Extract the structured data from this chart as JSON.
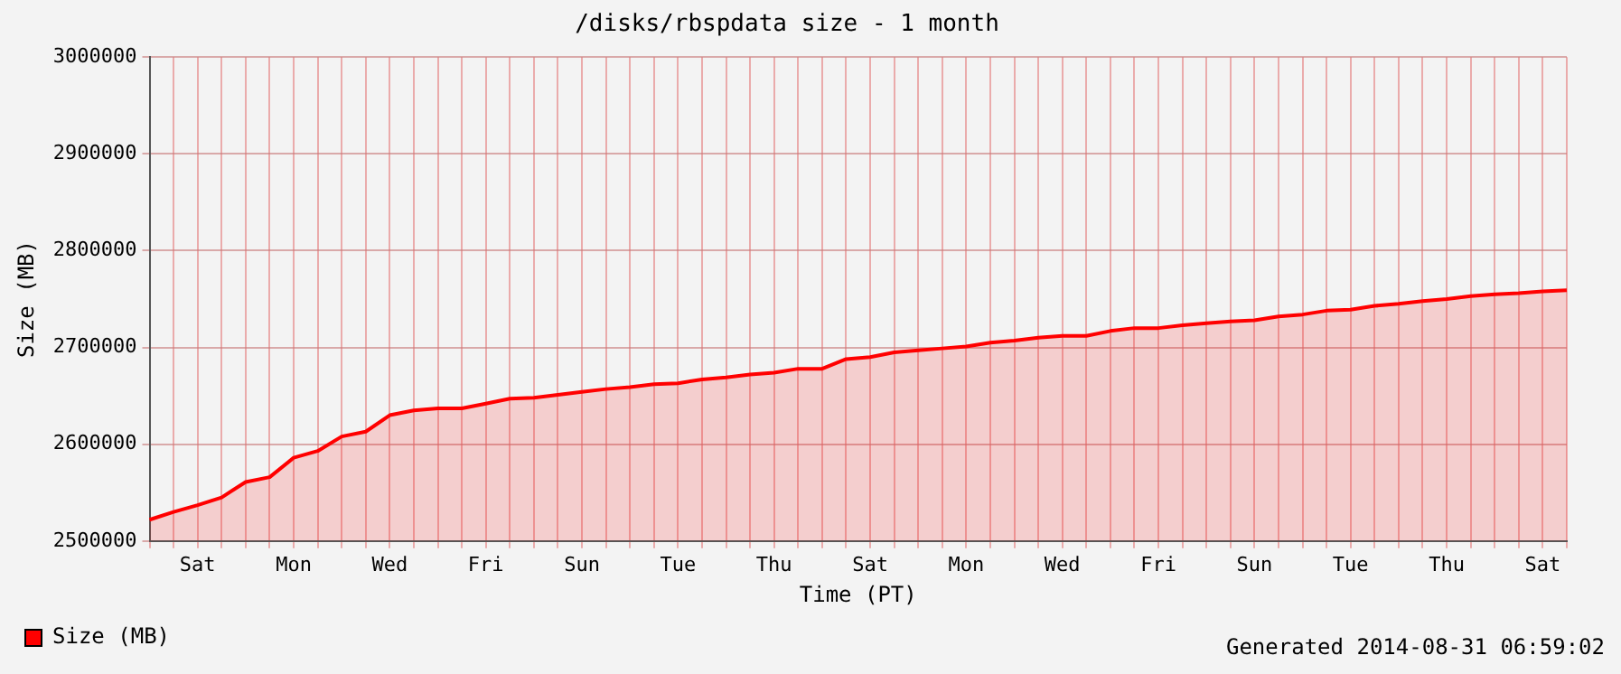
{
  "chart_data": {
    "type": "area",
    "title": "/disks/rbspdata size - 1 month",
    "xlabel": "Time (PT)",
    "ylabel": "Size (MB)",
    "annotations": [
      "Generated 2014-08-31 06:59:02"
    ],
    "categories": [
      null,
      null,
      "Sat",
      null,
      null,
      null,
      "Mon",
      null,
      null,
      null,
      "Wed",
      null,
      null,
      null,
      "Fri",
      null,
      null,
      null,
      "Sun",
      null,
      null,
      null,
      "Tue",
      null,
      null,
      null,
      "Thu",
      null,
      null,
      null,
      "Sat",
      null,
      null,
      null,
      "Mon",
      null,
      null,
      null,
      "Wed",
      null,
      null,
      null,
      "Fri",
      null,
      null,
      null,
      "Sun",
      null,
      null,
      null,
      "Tue",
      null,
      null,
      null,
      "Thu",
      null,
      null,
      null,
      "Sat",
      null
    ],
    "series": [
      {
        "name": "Size (MB)",
        "color": "#ff0000",
        "values": [
          2522000,
          2530000,
          2537000,
          2545000,
          2561000,
          2566000,
          2586000,
          2593000,
          2608000,
          2613000,
          2630000,
          2635000,
          2637000,
          2637000,
          2642000,
          2647000,
          2648000,
          2651000,
          2654000,
          2657000,
          2659000,
          2662000,
          2663000,
          2667000,
          2669000,
          2672000,
          2674000,
          2678000,
          2678000,
          2688000,
          2690000,
          2695000,
          2697000,
          2699000,
          2701000,
          2705000,
          2707000,
          2710000,
          2712000,
          2712000,
          2717000,
          2720000,
          2720000,
          2723000,
          2725000,
          2727000,
          2728000,
          2732000,
          2734000,
          2738000,
          2739000,
          2743000,
          2745000,
          2748000,
          2750000,
          2753000,
          2755000,
          2756000,
          2758000,
          2759000
        ]
      }
    ],
    "ylim": [
      2500000,
      3000000
    ],
    "yticks": [
      2500000,
      2600000,
      2700000,
      2800000,
      2900000,
      3000000
    ],
    "grid": true,
    "legend": "bottom left"
  }
}
